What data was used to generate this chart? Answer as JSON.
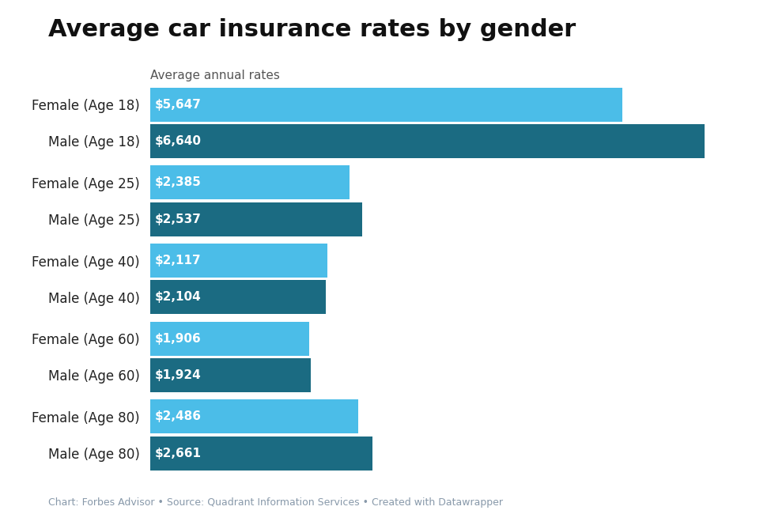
{
  "title": "Average car insurance rates by gender",
  "subtitle": "Average annual rates",
  "categories": [
    "Female (Age 18)",
    "Male (Age 18)",
    "Female (Age 25)",
    "Male (Age 25)",
    "Female (Age 40)",
    "Male (Age 40)",
    "Female (Age 60)",
    "Male (Age 60)",
    "Female (Age 80)",
    "Male (Age 80)"
  ],
  "values": [
    5647,
    6640,
    2385,
    2537,
    2117,
    2104,
    1906,
    1924,
    2486,
    2661
  ],
  "labels": [
    "$5,647",
    "$6,640",
    "$2,385",
    "$2,537",
    "$2,117",
    "$2,104",
    "$1,906",
    "$1,924",
    "$2,486",
    "$2,661"
  ],
  "colors": [
    "#4BBDE8",
    "#1B6B82",
    "#4BBDE8",
    "#1B6B82",
    "#4BBDE8",
    "#1B6B82",
    "#4BBDE8",
    "#1B6B82",
    "#4BBDE8",
    "#1B6B82"
  ],
  "bar_height": 0.82,
  "background_color": "#ffffff",
  "text_color_label": "#ffffff",
  "title_fontsize": 22,
  "subtitle_fontsize": 11,
  "label_fontsize": 11,
  "ytick_fontsize": 12,
  "footer_text": "Chart: Forbes Advisor • Source: Quadrant Information Services • Created with Datawrapper",
  "footer_color": "#8899aa",
  "footer_fontsize": 9,
  "xlim": [
    0,
    7200
  ]
}
